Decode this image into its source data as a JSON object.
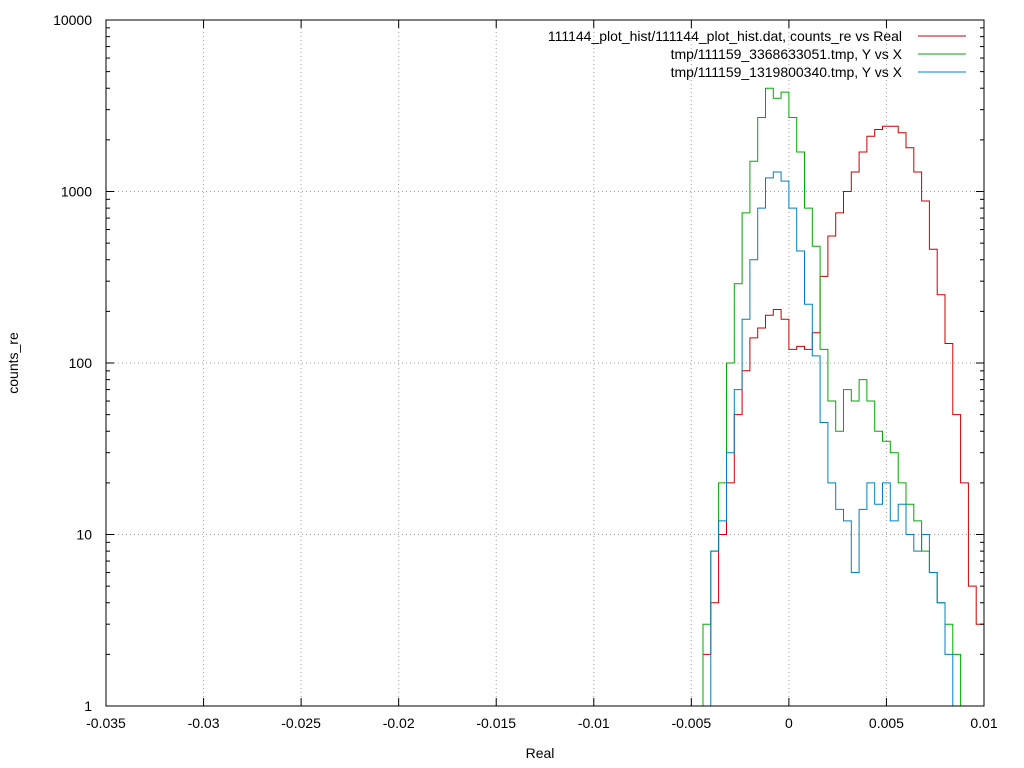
{
  "chart_data": {
    "type": "line",
    "style": "histogram-steps",
    "xlabel": "Real",
    "ylabel": "counts_re",
    "xlim": [
      -0.035,
      0.01
    ],
    "ylim": [
      1,
      10000
    ],
    "yscale": "log",
    "grid": true,
    "legend_position": "top-right",
    "x_ticks": [
      -0.035,
      -0.03,
      -0.025,
      -0.02,
      -0.015,
      -0.01,
      -0.005,
      0,
      0.005,
      0.01
    ],
    "x_tick_labels": [
      "-0.035",
      "-0.03",
      "-0.025",
      "-0.02",
      "-0.015",
      "-0.01",
      "-0.005",
      "0",
      "0.005",
      "0.01"
    ],
    "y_ticks": [
      1,
      10,
      100,
      1000,
      10000
    ],
    "y_tick_labels": [
      "1",
      "10",
      "100",
      "1000",
      "10000"
    ],
    "series": [
      {
        "name": "111144_plot_hist/111144_plot_hist.dat, counts_re vs Real",
        "color": "#cc0000",
        "x": [
          -0.0042,
          -0.0038,
          -0.0034,
          -0.003,
          -0.0026,
          -0.0022,
          -0.0018,
          -0.0014,
          -0.001,
          -0.0006,
          -0.0002,
          0.0002,
          0.0006,
          0.001,
          0.0014,
          0.0018,
          0.0022,
          0.0026,
          0.003,
          0.0034,
          0.0038,
          0.0042,
          0.0046,
          0.005,
          0.0054,
          0.0058,
          0.0062,
          0.0066,
          0.007,
          0.0074,
          0.0078,
          0.0082,
          0.0086,
          0.009,
          0.0094,
          0.0098
        ],
        "y": [
          2,
          4,
          10,
          20,
          50,
          90,
          140,
          160,
          190,
          205,
          180,
          120,
          125,
          120,
          150,
          320,
          550,
          750,
          1000,
          1300,
          1700,
          2100,
          2300,
          2400,
          2400,
          2200,
          1800,
          1300,
          880,
          460,
          250,
          130,
          50,
          20,
          5,
          3
        ]
      },
      {
        "name": "tmp/111159_3368633051.tmp, Y vs X",
        "color": "#00aa00",
        "x": [
          -0.0042,
          -0.0038,
          -0.0034,
          -0.003,
          -0.0026,
          -0.0022,
          -0.0018,
          -0.0014,
          -0.001,
          -0.0006,
          -0.0002,
          0.0002,
          0.0006,
          0.001,
          0.0014,
          0.0018,
          0.0022,
          0.0026,
          0.003,
          0.0034,
          0.0038,
          0.0042,
          0.0046,
          0.005,
          0.0054,
          0.0058,
          0.0062,
          0.0066,
          0.007,
          0.0074,
          0.0078,
          0.0082,
          0.0086,
          0.009
        ],
        "y": [
          3,
          8,
          20,
          100,
          290,
          750,
          1500,
          2700,
          4000,
          3500,
          3800,
          2700,
          1700,
          800,
          480,
          120,
          60,
          40,
          70,
          60,
          80,
          60,
          40,
          35,
          30,
          20,
          15,
          12,
          8,
          6,
          4,
          3,
          2,
          1
        ]
      },
      {
        "name": "tmp/111159_1319800340.tmp, Y vs X",
        "color": "#0080c0",
        "x": [
          -0.0038,
          -0.0034,
          -0.003,
          -0.0026,
          -0.0022,
          -0.0018,
          -0.0014,
          -0.001,
          -0.0006,
          -0.0002,
          0.0002,
          0.0006,
          0.001,
          0.0014,
          0.0018,
          0.0022,
          0.0026,
          0.003,
          0.0034,
          0.0038,
          0.0042,
          0.0046,
          0.005,
          0.0054,
          0.0058,
          0.0062,
          0.0066,
          0.007,
          0.0074,
          0.0078,
          0.0082,
          0.0086
        ],
        "y": [
          8,
          12,
          30,
          70,
          180,
          400,
          800,
          1200,
          1300,
          1150,
          800,
          450,
          220,
          110,
          45,
          20,
          14,
          12,
          6,
          14,
          20,
          15,
          20,
          12,
          15,
          10,
          8,
          10,
          6,
          4,
          2,
          1
        ]
      }
    ]
  }
}
